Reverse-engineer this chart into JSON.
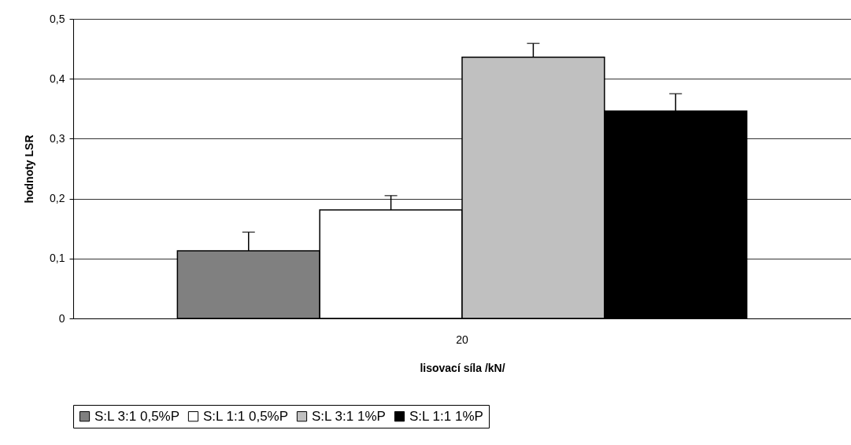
{
  "chart_data": {
    "type": "bar",
    "xlabel": "lisovací síla /kN/",
    "ylabel": "hodnoty LSR",
    "categories": [
      "20"
    ],
    "series": [
      {
        "name": "S:L 3:1 0,5%P",
        "color": "#808080",
        "values": [
          0.113
        ],
        "errors": [
          [
            0.113,
            0.144
          ]
        ]
      },
      {
        "name": "S:L 1:1 0,5%P",
        "color": "#ffffff",
        "values": [
          0.181
        ],
        "errors": [
          [
            0.181,
            0.205
          ]
        ]
      },
      {
        "name": "S:L 3:1 1%P",
        "color": "#c0c0c0",
        "values": [
          0.436
        ],
        "errors": [
          [
            0.436,
            0.459
          ]
        ]
      },
      {
        "name": "S:L 1:1 1%P",
        "color": "#000000",
        "values": [
          0.346
        ],
        "errors": [
          [
            0.346,
            0.375
          ]
        ]
      }
    ],
    "ylim": [
      0,
      0.5
    ],
    "yticks": [
      0,
      {
        "value": 0.1,
        "label": "0,1"
      },
      {
        "value": 0.2,
        "label": "0,2"
      },
      {
        "value": 0.3,
        "label": "0,3"
      },
      {
        "value": 0.4,
        "label": "0,4"
      },
      {
        "value": 0.5,
        "label": "0,5"
      }
    ],
    "grid": "y",
    "legend": "bottom"
  }
}
